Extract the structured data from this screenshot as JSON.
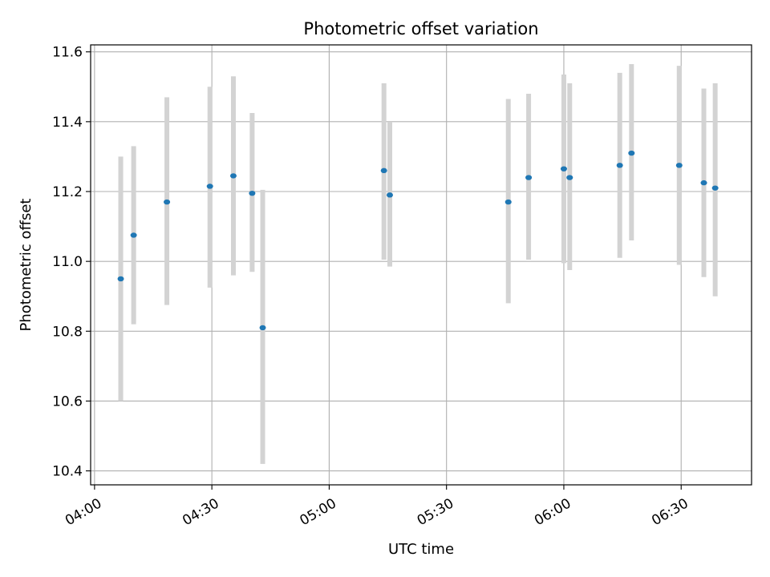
{
  "chart_data": {
    "type": "scatter",
    "title": "Photometric offset variation",
    "xlabel": "UTC time",
    "ylabel": "Photometric offset",
    "x_unit": "time-of-day HH:MM",
    "xlim": [
      "03:59",
      "06:48"
    ],
    "ylim": [
      10.36,
      11.62
    ],
    "x_ticks": [
      "04:00",
      "04:30",
      "05:00",
      "05:30",
      "06:00",
      "06:30"
    ],
    "y_ticks": [
      "10.4",
      "10.6",
      "10.8",
      "11.0",
      "11.2",
      "11.4",
      "11.6"
    ],
    "grid": true,
    "point_color": "#1f77b4",
    "errorbar_color": "#d3d3d3",
    "points": [
      {
        "x": "04:06.7",
        "y": 10.95,
        "low": 10.6,
        "high": 11.3
      },
      {
        "x": "04:10.0",
        "y": 11.075,
        "low": 10.82,
        "high": 11.33
      },
      {
        "x": "04:18.5",
        "y": 11.17,
        "low": 10.875,
        "high": 11.47
      },
      {
        "x": "04:29.5",
        "y": 11.215,
        "low": 10.925,
        "high": 11.5
      },
      {
        "x": "04:35.5",
        "y": 11.245,
        "low": 10.96,
        "high": 11.53
      },
      {
        "x": "04:40.3",
        "y": 11.195,
        "low": 10.97,
        "high": 11.425
      },
      {
        "x": "04:43.0",
        "y": 10.81,
        "low": 10.42,
        "high": 11.205
      },
      {
        "x": "05:14.0",
        "y": 11.26,
        "low": 11.005,
        "high": 11.51
      },
      {
        "x": "05:15.5",
        "y": 11.19,
        "low": 10.985,
        "high": 11.4
      },
      {
        "x": "05:45.8",
        "y": 11.17,
        "low": 10.88,
        "high": 11.465
      },
      {
        "x": "05:51.0",
        "y": 11.24,
        "low": 11.005,
        "high": 11.48
      },
      {
        "x": "06:00.0",
        "y": 11.265,
        "low": 10.995,
        "high": 11.535
      },
      {
        "x": "06:01.5",
        "y": 11.24,
        "low": 10.975,
        "high": 11.51
      },
      {
        "x": "06:14.3",
        "y": 11.275,
        "low": 11.01,
        "high": 11.54
      },
      {
        "x": "06:17.3",
        "y": 11.31,
        "low": 11.06,
        "high": 11.565
      },
      {
        "x": "06:29.5",
        "y": 11.275,
        "low": 10.99,
        "high": 11.56
      },
      {
        "x": "06:35.8",
        "y": 11.225,
        "low": 10.955,
        "high": 11.495
      },
      {
        "x": "06:38.7",
        "y": 11.21,
        "low": 10.9,
        "high": 11.51
      }
    ]
  }
}
